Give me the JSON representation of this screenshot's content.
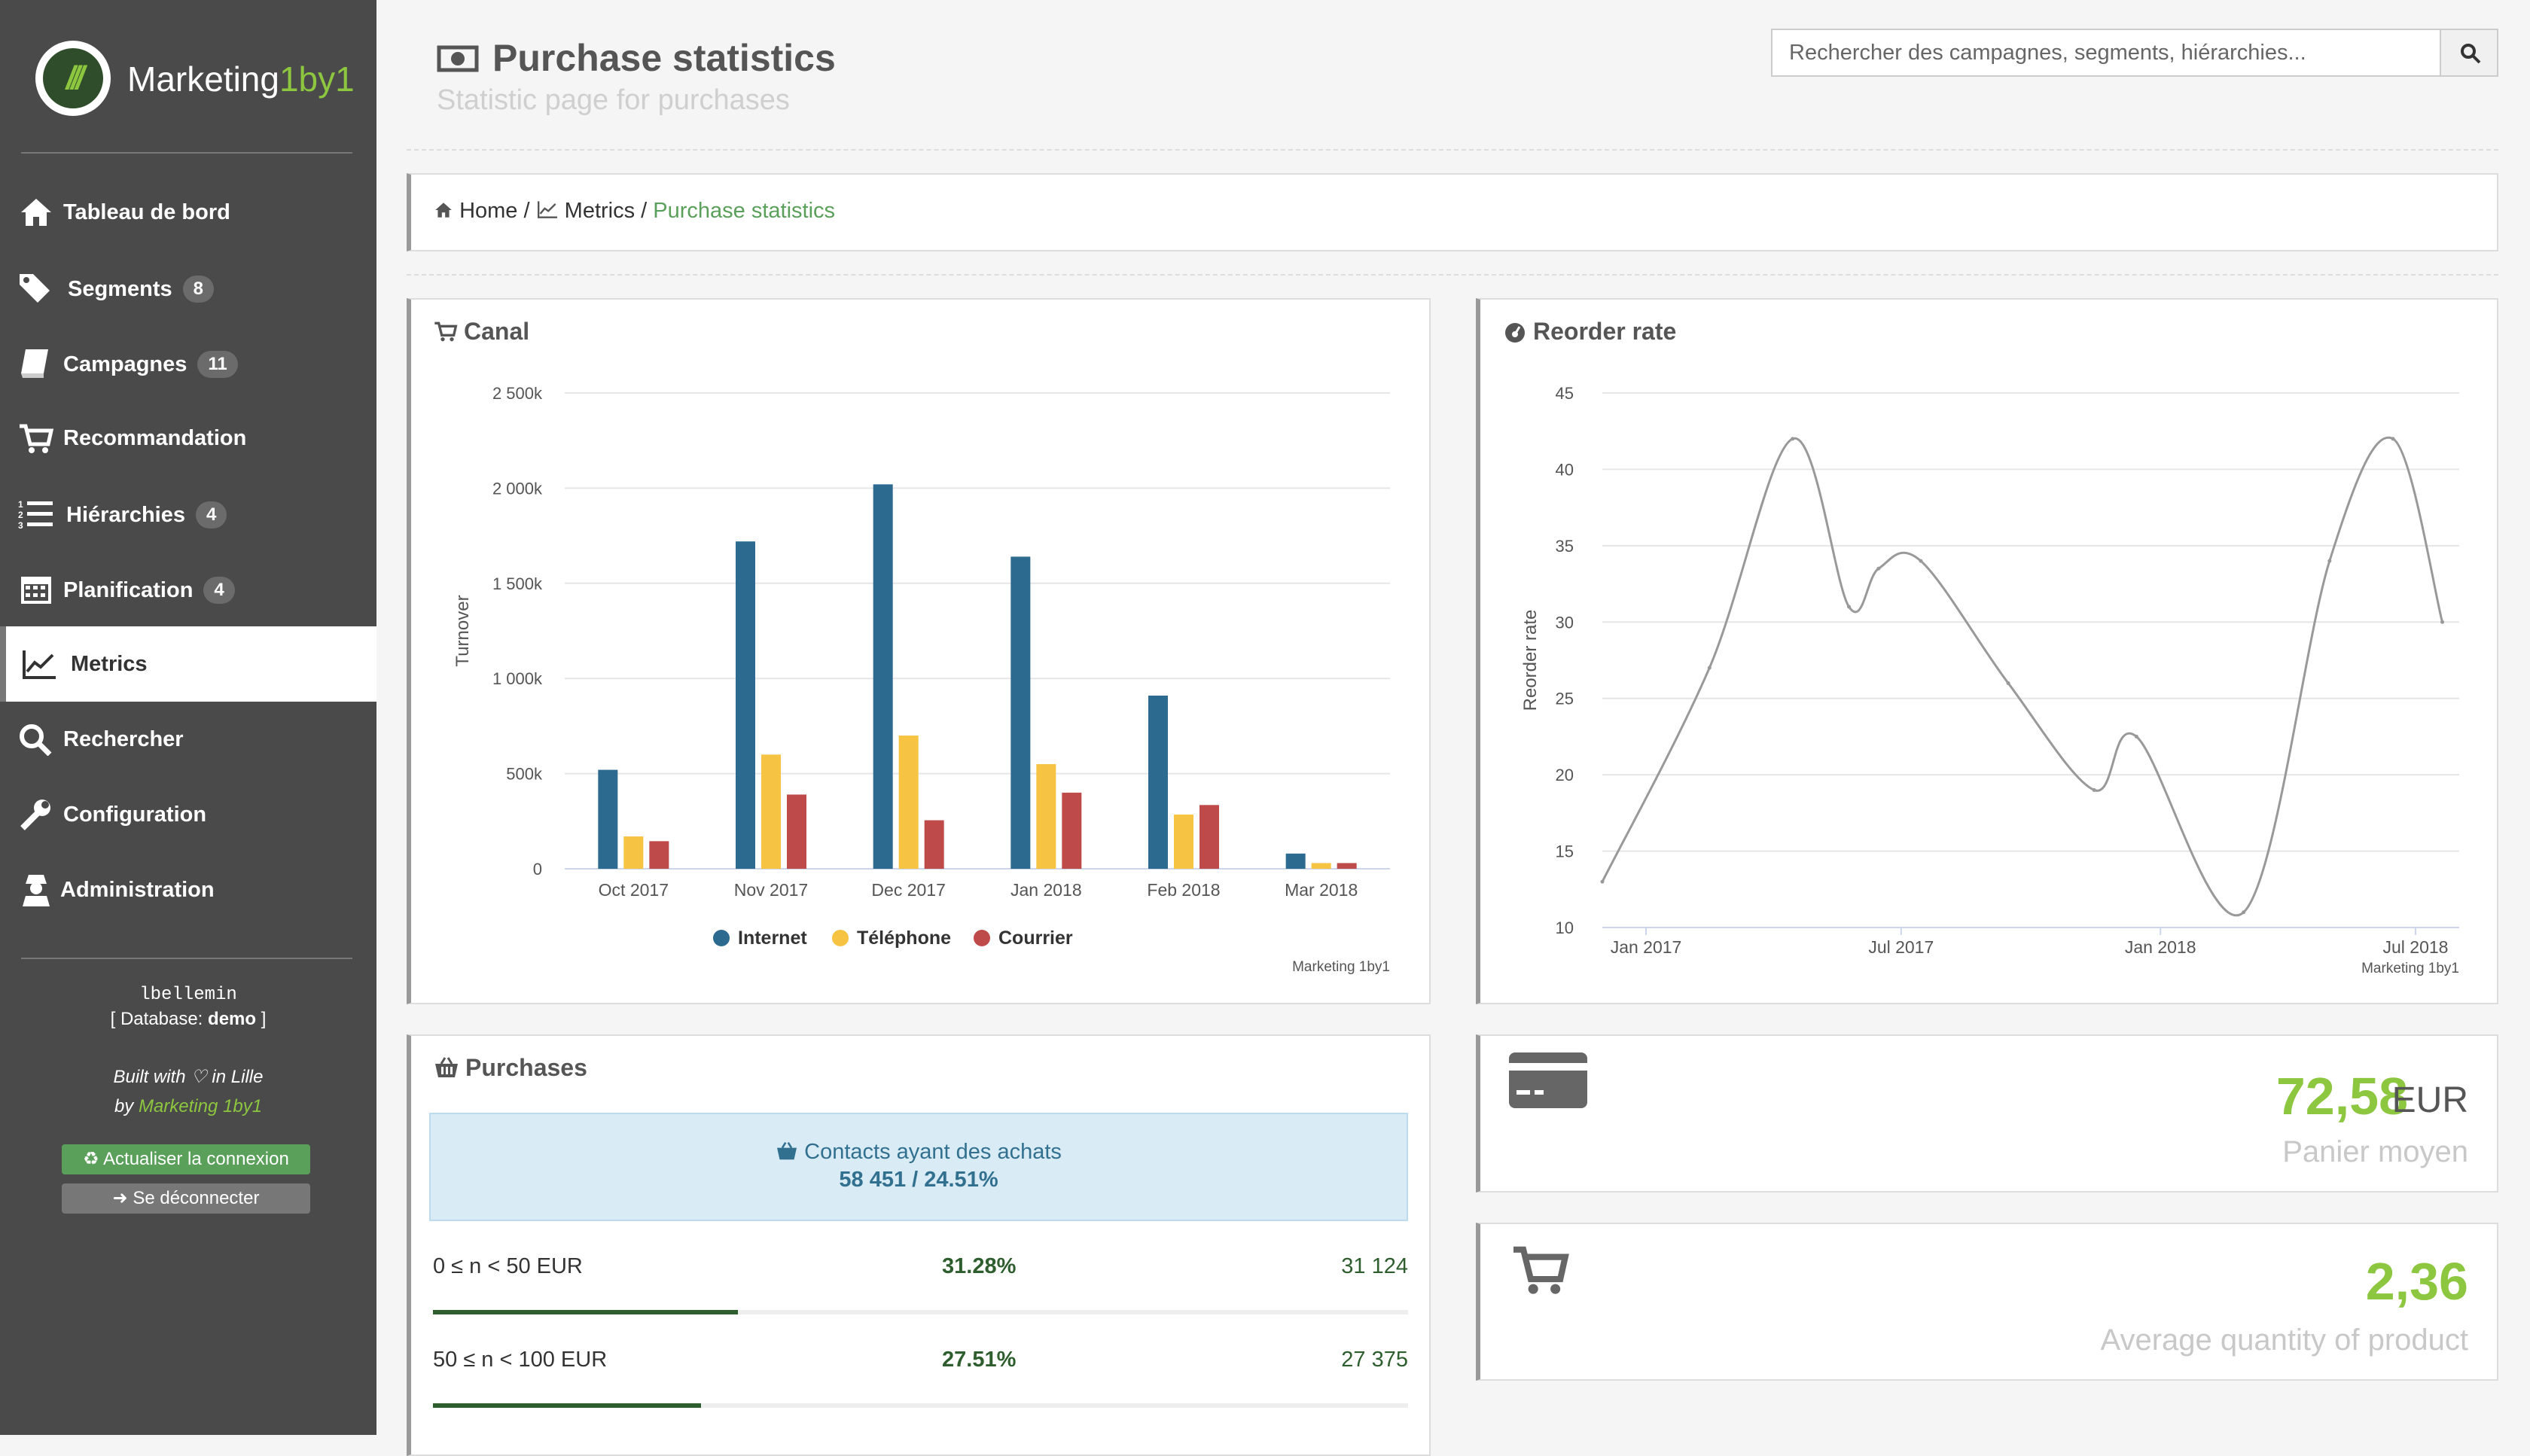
{
  "app": {
    "logo_text_main": "Marketing",
    "logo_text_accent": "1by1",
    "logo_mark": "///"
  },
  "colors": {
    "accent": "#8dc63f",
    "sidebar": "#4a4a4a",
    "internet": "#2d6a8f",
    "telephone": "#f6c342",
    "courrier": "#bf4a4a",
    "line": "#999999",
    "progress": "#2e5e2e"
  },
  "sidebar": {
    "items": [
      {
        "label": "Tableau de bord",
        "icon": "home-icon",
        "badge": ""
      },
      {
        "label": "Segments",
        "icon": "tags-icon",
        "badge": "8"
      },
      {
        "label": "Campagnes",
        "icon": "book-icon",
        "badge": "11"
      },
      {
        "label": "Recommandation",
        "icon": "cart-icon",
        "badge": ""
      },
      {
        "label": "Hiérarchies",
        "icon": "ordered-list-icon",
        "badge": "4"
      },
      {
        "label": "Planification",
        "icon": "calendar-icon",
        "badge": "4"
      },
      {
        "label": "Metrics",
        "icon": "line-chart-icon",
        "badge": "",
        "active": true
      },
      {
        "label": "Rechercher",
        "icon": "search-icon",
        "badge": ""
      },
      {
        "label": "Configuration",
        "icon": "wrench-icon",
        "badge": ""
      },
      {
        "label": "Administration",
        "icon": "user-secret-icon",
        "badge": ""
      }
    ],
    "user": "lbellemin",
    "database_prefix": "[ Database: ",
    "database": "demo",
    "database_suffix": " ]",
    "built_with": "Built with ♡ in Lille",
    "by_prefix": "by ",
    "by_link": "Marketing 1by1",
    "refresh_button": "♻ Actualiser la connexion",
    "logout_button": "➜ Se déconnecter"
  },
  "header": {
    "title": "Purchase statistics",
    "subtitle": "Statistic page for purchases"
  },
  "search": {
    "placeholder": "Rechercher des campagnes, segments, hiérarchies..."
  },
  "breadcrumb": {
    "home": "Home",
    "sep1": " / ",
    "metrics": "Metrics",
    "sep2": " / ",
    "current": "Purchase statistics"
  },
  "panels": {
    "canal_title": "Canal",
    "reorder_title": "Reorder rate",
    "purchases_title": "Purchases"
  },
  "purchases": {
    "contacts_label": "Contacts ayant des achats",
    "contacts_value": "58 451 / 24.51%",
    "rows": [
      {
        "range": "0 ≤ n < 50 EUR",
        "percent": "31.28%",
        "count": "31 124",
        "fraction": 0.3128
      },
      {
        "range": "50 ≤ n < 100 EUR",
        "percent": "27.51%",
        "count": "27 375",
        "fraction": 0.2751
      }
    ]
  },
  "stats": {
    "panier_value": "72,58",
    "panier_unit": "EUR",
    "panier_label": "Panier moyen",
    "quantity_value": "2,36",
    "quantity_label": "Average quantity of product"
  },
  "chart_data": [
    {
      "type": "bar",
      "title": "",
      "ylabel": "Turnover",
      "credits": "Marketing 1by1",
      "categories": [
        "Oct 2017",
        "Nov 2017",
        "Dec 2017",
        "Jan 2018",
        "Feb 2018",
        "Mar 2018"
      ],
      "series": [
        {
          "name": "Internet",
          "values": [
            520000,
            1720000,
            2020000,
            1640000,
            910000,
            80000
          ]
        },
        {
          "name": "Téléphone",
          "values": [
            170000,
            600000,
            700000,
            550000,
            285000,
            30000
          ]
        },
        {
          "name": "Courrier",
          "values": [
            145000,
            390000,
            255000,
            400000,
            335000,
            30000
          ]
        }
      ],
      "ylim": [
        0,
        2500000
      ],
      "yticks": [
        "0",
        "500k",
        "1 000k",
        "1 500k",
        "2 000k",
        "2 500k"
      ],
      "legend": "bottom-center",
      "grid": true
    },
    {
      "type": "line",
      "title": "",
      "ylabel": "Reorder rate",
      "credits": "Marketing 1by1",
      "x": [
        "2016-12-01",
        "2017-02-15",
        "2017-04-15",
        "2017-05-25",
        "2017-06-15",
        "2017-07-15",
        "2017-09-15",
        "2017-11-15",
        "2017-12-15",
        "2018-03-01",
        "2018-05-01",
        "2018-06-15",
        "2018-07-20"
      ],
      "y": [
        13,
        27,
        42,
        31,
        33.5,
        34,
        26,
        19,
        22.5,
        11,
        34,
        42,
        30
      ],
      "xticks": [
        "Jan 2017",
        "Jul 2017",
        "Jan 2018",
        "Jul 2018"
      ],
      "ylim": [
        10,
        45
      ],
      "yticks": [
        "10",
        "15",
        "20",
        "25",
        "30",
        "35",
        "40",
        "45"
      ],
      "grid": true
    }
  ]
}
